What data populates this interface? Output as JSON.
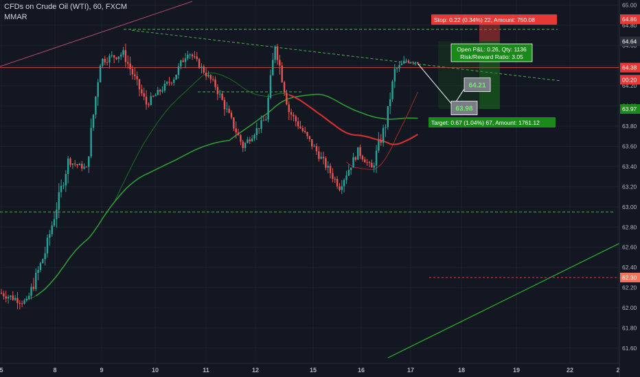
{
  "header": {
    "title": "CFDs on Crude Oil (WTI), 60, FXCM",
    "indicator": "MMAR"
  },
  "colors": {
    "background": "#131722",
    "bull": "#26a69a",
    "bear": "#ef5350",
    "grid": "#1e222d",
    "ma_green": "#2e9b36",
    "ma_red": "#d32f2f",
    "dashed_green": "#4caf50",
    "stop": "#e53935",
    "target": "#1b8a1b",
    "price_line": "#c94a4a"
  },
  "chart_data": {
    "type": "candlestick",
    "symbol": "CFDs on Crude Oil (WTI)",
    "interval": "60",
    "source": "FXCM",
    "yrange": [
      61.45,
      65.05
    ],
    "y_ticks": [
      "65.00",
      "64.80",
      "64.60",
      "64.40",
      "64.20",
      "64.00",
      "63.80",
      "63.60",
      "63.40",
      "63.20",
      "63.00",
      "62.80",
      "62.60",
      "62.40",
      "62.20",
      "62.00",
      "61.80",
      "61.60"
    ],
    "x_ticks": [
      "5",
      "8",
      "9",
      "10",
      "11",
      "12",
      "15",
      "16",
      "17",
      "18",
      "19",
      "22",
      "2"
    ],
    "price_marks": [
      {
        "label": "64.86",
        "value": 64.86,
        "color": "#e53935"
      },
      {
        "label": "64.64",
        "value": 64.64,
        "color": "#2a2e39"
      },
      {
        "label": "64.38",
        "value": 64.38,
        "color": "#e53935"
      },
      {
        "label": "00:20",
        "value": 64.26,
        "color": "#e53935"
      },
      {
        "label": "63.97",
        "value": 63.97,
        "color": "#1b8a1b"
      },
      {
        "label": "62.30",
        "value": 62.3,
        "color": "#f4735c"
      }
    ],
    "stop_label": "Stop: 0.22 (0.34%) 22, Amount: 750.08",
    "target_label": "Target: 0.67 (1.04%) 67, Amount: 1761.12",
    "pnl_line1": "Open P&L: 0.26, Qty: 1136",
    "pnl_line2": "Risk/Reward Ratio: 3.05",
    "entry": 64.64,
    "stop": 64.86,
    "target": 63.97,
    "projection_labels": [
      "64.21",
      "63.98"
    ],
    "projection_values": [
      64.21,
      63.98
    ],
    "segments": [
      {
        "n": 12,
        "from": 62.15,
        "to": 62.05,
        "vol": 0.08
      },
      {
        "n": 8,
        "from": 62.05,
        "to": 62.55,
        "vol": 0.12
      },
      {
        "n": 10,
        "from": 62.55,
        "to": 63.45,
        "vol": 0.12
      },
      {
        "n": 8,
        "from": 63.45,
        "to": 63.38,
        "vol": 0.05
      },
      {
        "n": 6,
        "from": 63.38,
        "to": 64.45,
        "vol": 0.14
      },
      {
        "n": 10,
        "from": 64.45,
        "to": 64.52,
        "vol": 0.08
      },
      {
        "n": 10,
        "from": 64.52,
        "to": 64.02,
        "vol": 0.09
      },
      {
        "n": 12,
        "from": 64.02,
        "to": 64.28,
        "vol": 0.07
      },
      {
        "n": 6,
        "from": 64.28,
        "to": 64.55,
        "vol": 0.09
      },
      {
        "n": 12,
        "from": 64.55,
        "to": 64.2,
        "vol": 0.07
      },
      {
        "n": 12,
        "from": 64.2,
        "to": 63.6,
        "vol": 0.09
      },
      {
        "n": 10,
        "from": 63.6,
        "to": 63.88,
        "vol": 0.07
      },
      {
        "n": 4,
        "from": 63.88,
        "to": 64.62,
        "vol": 0.12
      },
      {
        "n": 6,
        "from": 64.62,
        "to": 63.95,
        "vol": 0.12
      },
      {
        "n": 12,
        "from": 63.95,
        "to": 63.55,
        "vol": 0.08
      },
      {
        "n": 10,
        "from": 63.55,
        "to": 63.2,
        "vol": 0.08
      },
      {
        "n": 8,
        "from": 63.2,
        "to": 63.55,
        "vol": 0.08
      },
      {
        "n": 6,
        "from": 63.55,
        "to": 63.38,
        "vol": 0.06
      },
      {
        "n": 6,
        "from": 63.38,
        "to": 63.82,
        "vol": 0.12
      },
      {
        "n": 4,
        "from": 63.82,
        "to": 64.35,
        "vol": 0.1
      },
      {
        "n": 5,
        "from": 64.35,
        "to": 64.45,
        "vol": 0.06
      },
      {
        "n": 5,
        "from": 64.45,
        "to": 64.44,
        "vol": 0.05
      }
    ]
  }
}
